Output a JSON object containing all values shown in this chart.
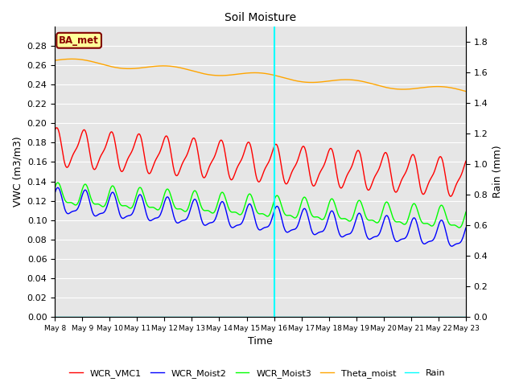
{
  "title": "Soil Moisture",
  "xlabel": "Time",
  "ylabel_left": "VWC (m3/m3)",
  "ylabel_right": "Rain (mm)",
  "ylim_left": [
    0.0,
    0.3
  ],
  "ylim_right": [
    0.0,
    1.9
  ],
  "yticks_left": [
    0.0,
    0.02,
    0.04,
    0.06,
    0.08,
    0.1,
    0.12,
    0.14,
    0.16,
    0.18,
    0.2,
    0.22,
    0.24,
    0.26,
    0.28
  ],
  "yticks_right": [
    0.0,
    0.2,
    0.4,
    0.6,
    0.8,
    1.0,
    1.2,
    1.4,
    1.6,
    1.8
  ],
  "x_tick_labels": [
    "May 8",
    "May 9",
    "May 10",
    "May 11",
    "May 12",
    "May 13",
    "May 14",
    "May 15",
    "May 16",
    "May 17",
    "May 18",
    "May 19",
    "May 20",
    "May 21",
    "May 22",
    "May 23"
  ],
  "vline_color": "cyan",
  "bg_color": "#e6e6e6",
  "label_box_text": "BA_met",
  "label_box_bg": "#ffff99",
  "label_box_edge": "#800000",
  "legend_entries": [
    "WCR_VMC1",
    "WCR_Moist2",
    "WCR_Moist3",
    "Theta_moist",
    "Rain"
  ],
  "line_width": 1.0,
  "title_fontsize": 10,
  "tick_fontsize": 8
}
